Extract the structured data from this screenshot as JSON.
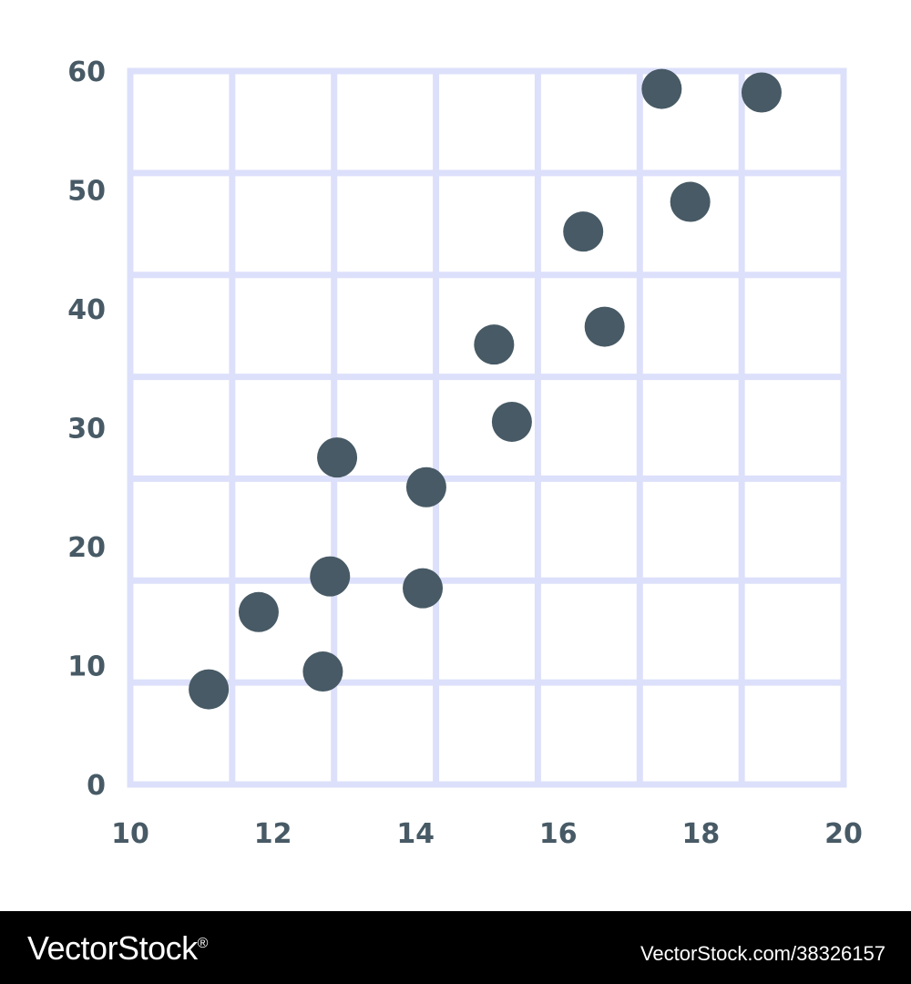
{
  "chart_data": {
    "type": "scatter",
    "title": "",
    "xlabel": "",
    "ylabel": "",
    "xlim": [
      10,
      20
    ],
    "ylim": [
      0,
      60
    ],
    "x_ticks": [
      10,
      12,
      14,
      16,
      18,
      20
    ],
    "y_ticks": [
      0,
      10,
      20,
      30,
      40,
      50,
      60
    ],
    "grid": true,
    "grid_color": "#dde0fa",
    "point_color": "#475a65",
    "points": [
      {
        "x": 11.1,
        "y": 8
      },
      {
        "x": 11.8,
        "y": 14.5
      },
      {
        "x": 12.7,
        "y": 9.5
      },
      {
        "x": 12.8,
        "y": 17.5
      },
      {
        "x": 12.9,
        "y": 27.5
      },
      {
        "x": 14.1,
        "y": 16.5
      },
      {
        "x": 14.15,
        "y": 25
      },
      {
        "x": 15.1,
        "y": 37
      },
      {
        "x": 15.35,
        "y": 30.5
      },
      {
        "x": 16.35,
        "y": 46.5
      },
      {
        "x": 16.65,
        "y": 38.5
      },
      {
        "x": 17.45,
        "y": 58.5
      },
      {
        "x": 17.85,
        "y": 49
      },
      {
        "x": 18.85,
        "y": 58.2
      }
    ]
  },
  "watermark": {
    "brand": "VectorStock",
    "registered_mark": "®",
    "image_id": "VectorStock.com/38326157"
  }
}
